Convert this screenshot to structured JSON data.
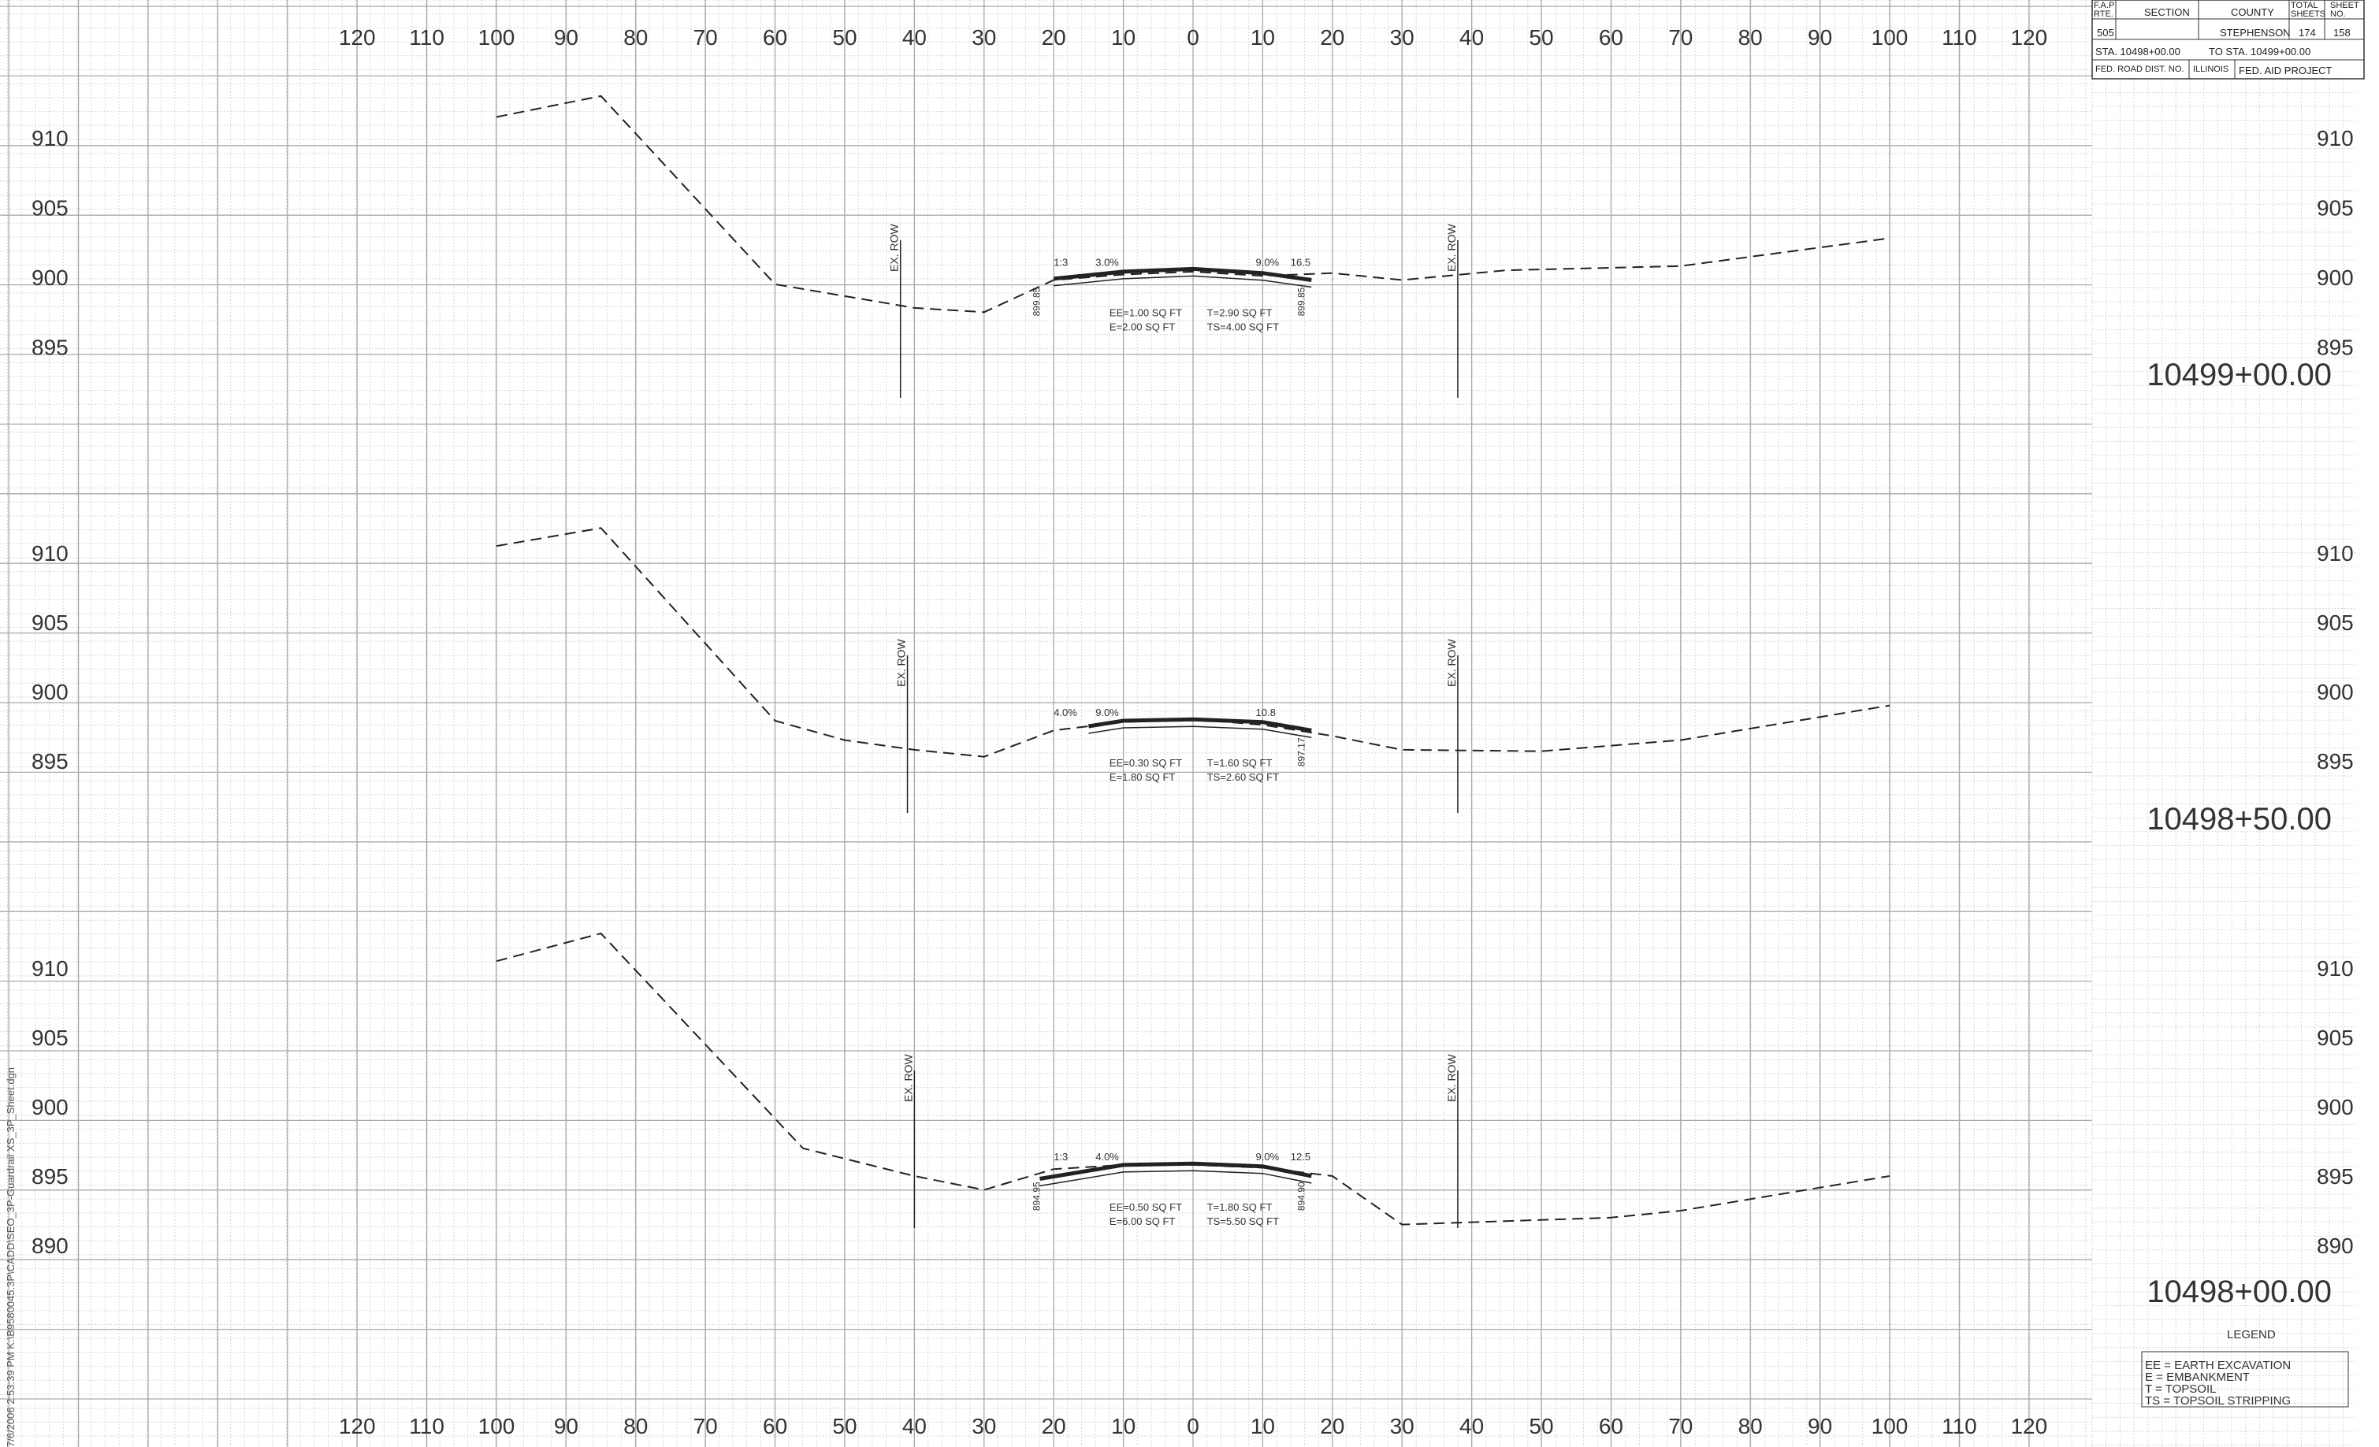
{
  "title_block": {
    "fap_rte_label": "F.A.P RTE.",
    "section_label": "SECTION",
    "county_label": "COUNTY",
    "total_sheets_label": "TOTAL SHEETS",
    "sheet_no_label": "SHEET NO.",
    "fap_rte": "505",
    "county": "STEPHENSON",
    "total_sheets": "174",
    "sheet_no": "158",
    "sta_from": "STA. 10498+00.00",
    "sta_to": "TO STA. 10499+00.00",
    "fed_road_dist": "FED. ROAD DIST. NO.",
    "state": "ILLINOIS",
    "fed_aid_project": "FED. AID PROJECT"
  },
  "offset_labels": [
    "120",
    "110",
    "100",
    "90",
    "80",
    "70",
    "60",
    "50",
    "40",
    "30",
    "20",
    "10",
    "0",
    "10",
    "20",
    "30",
    "40",
    "50",
    "60",
    "70",
    "80",
    "90",
    "100",
    "110",
    "120"
  ],
  "row_label": "EX. ROW",
  "sections": [
    {
      "station": "10499+00.00",
      "elev_labels": [
        "910",
        "905",
        "900",
        "895"
      ],
      "elev_min": 895,
      "elev_max": 910,
      "ground": [
        [
          -100,
          911.5
        ],
        [
          -85,
          913.0
        ],
        [
          -60,
          899.5
        ],
        [
          -40,
          897.8
        ],
        [
          -30,
          897.5
        ],
        [
          -20,
          899.8
        ],
        [
          -10,
          900.2
        ],
        [
          0,
          900.4
        ],
        [
          10,
          900.1
        ],
        [
          20,
          900.3
        ],
        [
          30,
          899.8
        ],
        [
          45,
          900.5
        ],
        [
          70,
          900.8
        ],
        [
          100,
          902.8
        ]
      ],
      "pavement": [
        [
          -20,
          899.9
        ],
        [
          -10,
          900.4
        ],
        [
          0,
          900.6
        ],
        [
          10,
          900.3
        ],
        [
          17,
          899.8
        ]
      ],
      "left_row": -42,
      "right_row": 38,
      "slope_labels": [
        "1:3",
        "3.0%",
        "9.0%",
        "16.5"
      ],
      "elev_notes": [
        "899.85",
        "899.85"
      ],
      "quantities": [
        "EE=1.00 SQ FT",
        "E=2.00 SQ FT",
        "T=2.90 SQ FT",
        "TS=4.00 SQ FT"
      ]
    },
    {
      "station": "10498+50.00",
      "elev_labels": [
        "910",
        "905",
        "900",
        "895"
      ],
      "elev_min": 895,
      "elev_max": 910,
      "ground": [
        [
          -100,
          910.5
        ],
        [
          -85,
          911.8
        ],
        [
          -60,
          897.9
        ],
        [
          -50,
          896.5
        ],
        [
          -40,
          895.8
        ],
        [
          -30,
          895.3
        ],
        [
          -20,
          897.2
        ],
        [
          -10,
          897.8
        ],
        [
          0,
          898.0
        ],
        [
          10,
          897.6
        ],
        [
          20,
          896.8
        ],
        [
          30,
          895.8
        ],
        [
          50,
          895.7
        ],
        [
          70,
          896.5
        ],
        [
          100,
          899.0
        ]
      ],
      "pavement": [
        [
          -15,
          897.5
        ],
        [
          -10,
          897.9
        ],
        [
          0,
          898.0
        ],
        [
          10,
          897.8
        ],
        [
          17,
          897.2
        ]
      ],
      "left_row": -41,
      "right_row": 38,
      "slope_labels": [
        "4.0%",
        "9.0%",
        "10.8"
      ],
      "elev_notes": [
        "897.17"
      ],
      "quantities": [
        "EE=0.30 SQ FT",
        "E=1.80 SQ FT",
        "T=1.60 SQ FT",
        "TS=2.60 SQ FT"
      ]
    },
    {
      "station": "10498+00.00",
      "elev_labels": [
        "910",
        "905",
        "900",
        "895",
        "890"
      ],
      "elev_min": 890,
      "elev_max": 910,
      "ground": [
        [
          -100,
          910.5
        ],
        [
          -85,
          912.5
        ],
        [
          -56,
          897.0
        ],
        [
          -40,
          895.0
        ],
        [
          -30,
          894.0
        ],
        [
          -20,
          895.5
        ],
        [
          -10,
          895.8
        ],
        [
          0,
          895.8
        ],
        [
          10,
          895.6
        ],
        [
          20,
          895.0
        ],
        [
          30,
          891.5
        ],
        [
          60,
          892.0
        ],
        [
          70,
          892.5
        ],
        [
          100,
          895.0
        ]
      ],
      "pavement": [
        [
          -22,
          894.8
        ],
        [
          -10,
          895.8
        ],
        [
          0,
          895.9
        ],
        [
          10,
          895.7
        ],
        [
          17,
          895.0
        ]
      ],
      "left_row": -40,
      "right_row": 38,
      "slope_labels": [
        "1:3",
        "4.0%",
        "9.0%",
        "12.5"
      ],
      "elev_notes": [
        "894.95",
        "894.90"
      ],
      "quantities": [
        "EE=0.50 SQ FT",
        "E=6.00 SQ FT",
        "T=1.80 SQ FT",
        "TS=5.50 SQ FT"
      ]
    }
  ],
  "legend": {
    "title": "LEGEND",
    "items": [
      "EE = EARTH EXCAVATION",
      "E = EMBANKMENT",
      "T = TOPSOIL",
      "TS = TOPSOIL STRIPPING"
    ]
  },
  "side_note": "7/6/2006 2:53:39 PM   K:\\B9580045.3P\\CADD\\SEO_3P-Guardrail XS_3P_Sheet.dgn",
  "colors": {
    "grid_minor": "#d8d8d8",
    "grid_major": "#a9a9a9",
    "ink": "#222222"
  }
}
